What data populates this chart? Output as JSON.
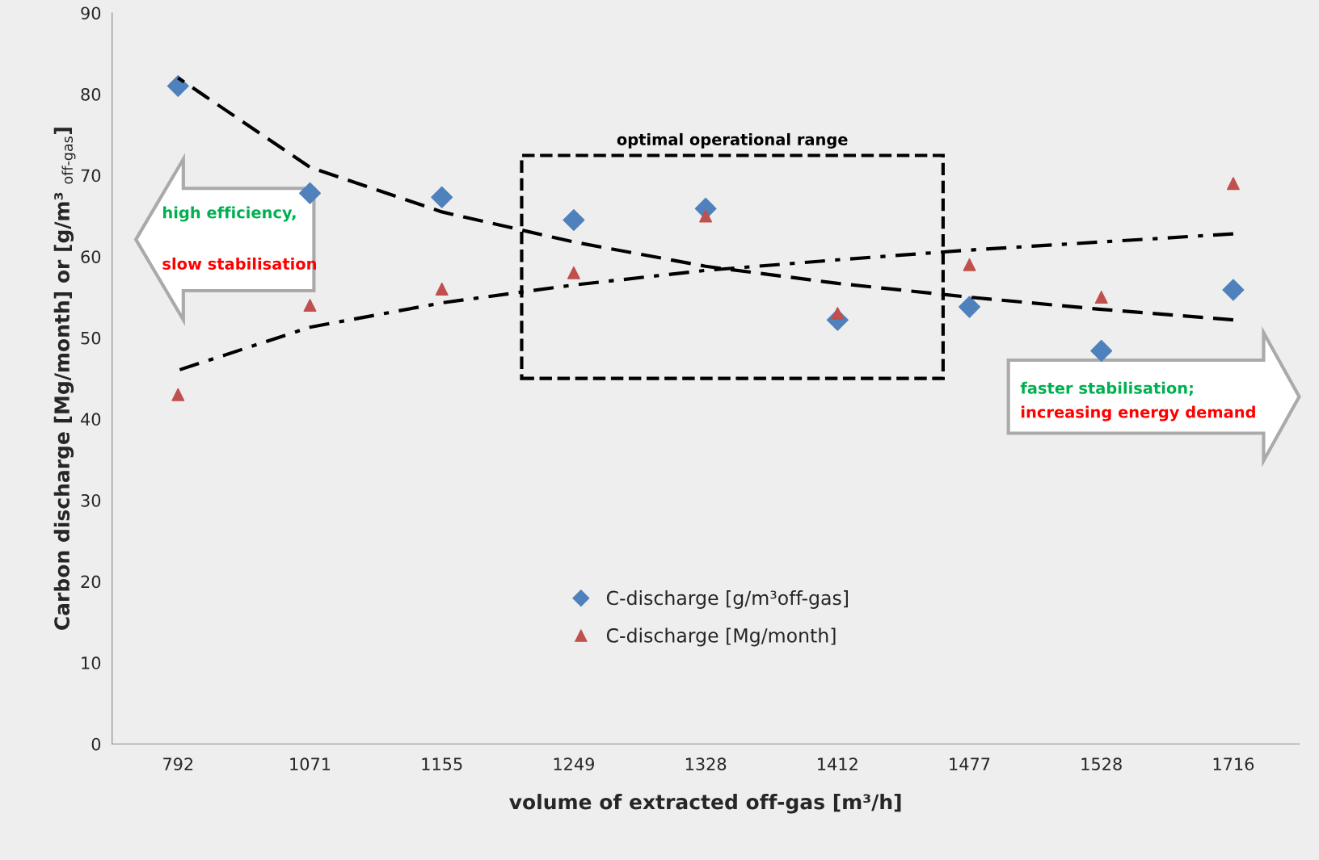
{
  "chart_data": {
    "type": "scatter",
    "xlabel": "volume of extracted off-gas [m³/h]",
    "ylabel": "Carbon discharge [Mg/month] or [g/m³ $_{off-gas}$]",
    "categories": [
      "792",
      "1071",
      "1155",
      "1249",
      "1328",
      "1412",
      "1477",
      "1528",
      "1716"
    ],
    "series": [
      {
        "name": "C-discharge [g/m³off-gas]",
        "marker": "diamond",
        "color": "#4f81bd",
        "values": [
          81,
          67.8,
          67.3,
          64.5,
          65.9,
          52.2,
          53.8,
          48.4,
          55.9
        ]
      },
      {
        "name": "C-discharge [Mg/month]",
        "marker": "triangle",
        "color": "#c0504d",
        "values": [
          43,
          54,
          56,
          58,
          65,
          53,
          59,
          55,
          69
        ]
      },
      {
        "type": "line",
        "color": "#000000",
        "line_style": "dashed",
        "values": [
          82,
          71,
          65.5,
          61.8,
          58.8,
          56.7,
          55,
          53.5,
          52.2
        ]
      },
      {
        "type": "line",
        "color": "#000000",
        "line_style": "dashdot",
        "values": [
          46,
          51.3,
          54.3,
          56.5,
          58.3,
          59.6,
          60.8,
          61.8,
          62.8
        ]
      }
    ],
    "ylim": [
      0,
      90
    ],
    "yticks": [
      0,
      10,
      20,
      30,
      40,
      50,
      60,
      70,
      80,
      90
    ],
    "grid": false,
    "legend": "bottom",
    "annotations": [
      "optimal operational range",
      "high efficiency,",
      "slow stabilisation",
      "faster stabilisation;",
      "increasing energy demand"
    ]
  }
}
